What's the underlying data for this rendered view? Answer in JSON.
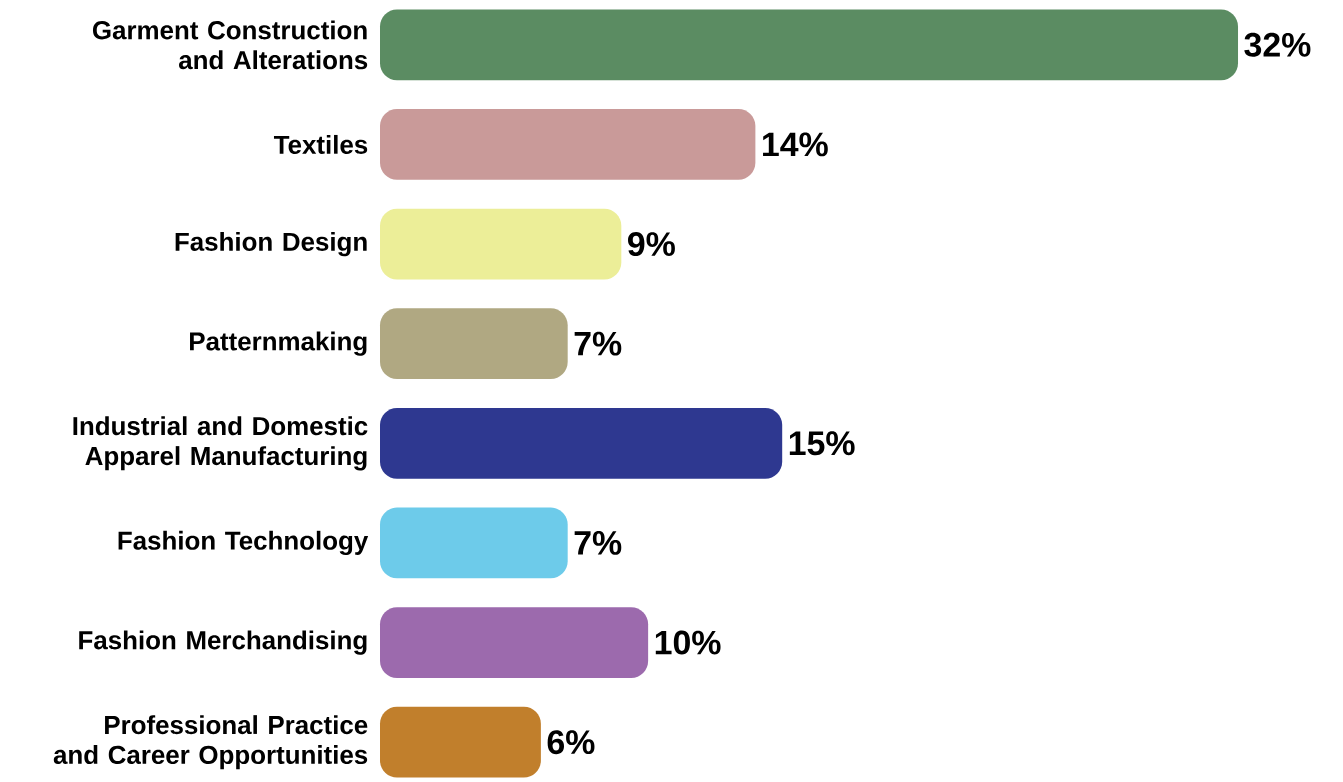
{
  "chart_data": {
    "type": "bar",
    "orientation": "horizontal",
    "categories": [
      "Garment Construction and Alterations",
      "Textiles",
      "Fashion Design",
      "Patternmaking",
      "Industrial and Domestic Apparel Manufacturing",
      "Fashion Technology",
      "Fashion Merchandising",
      "Professional Practice and Career Opportunities"
    ],
    "values": [
      32,
      14,
      9,
      7,
      15,
      7,
      10,
      6
    ],
    "colors": [
      "#5b8c62",
      "#c99a99",
      "#ecee98",
      "#b0a882",
      "#2e3890",
      "#6dcbea",
      "#9c6aad",
      "#c17f2c"
    ],
    "value_labels": [
      "32%",
      "14%",
      "9%",
      "7%",
      "15%",
      "7%",
      "10%",
      "6%"
    ]
  }
}
